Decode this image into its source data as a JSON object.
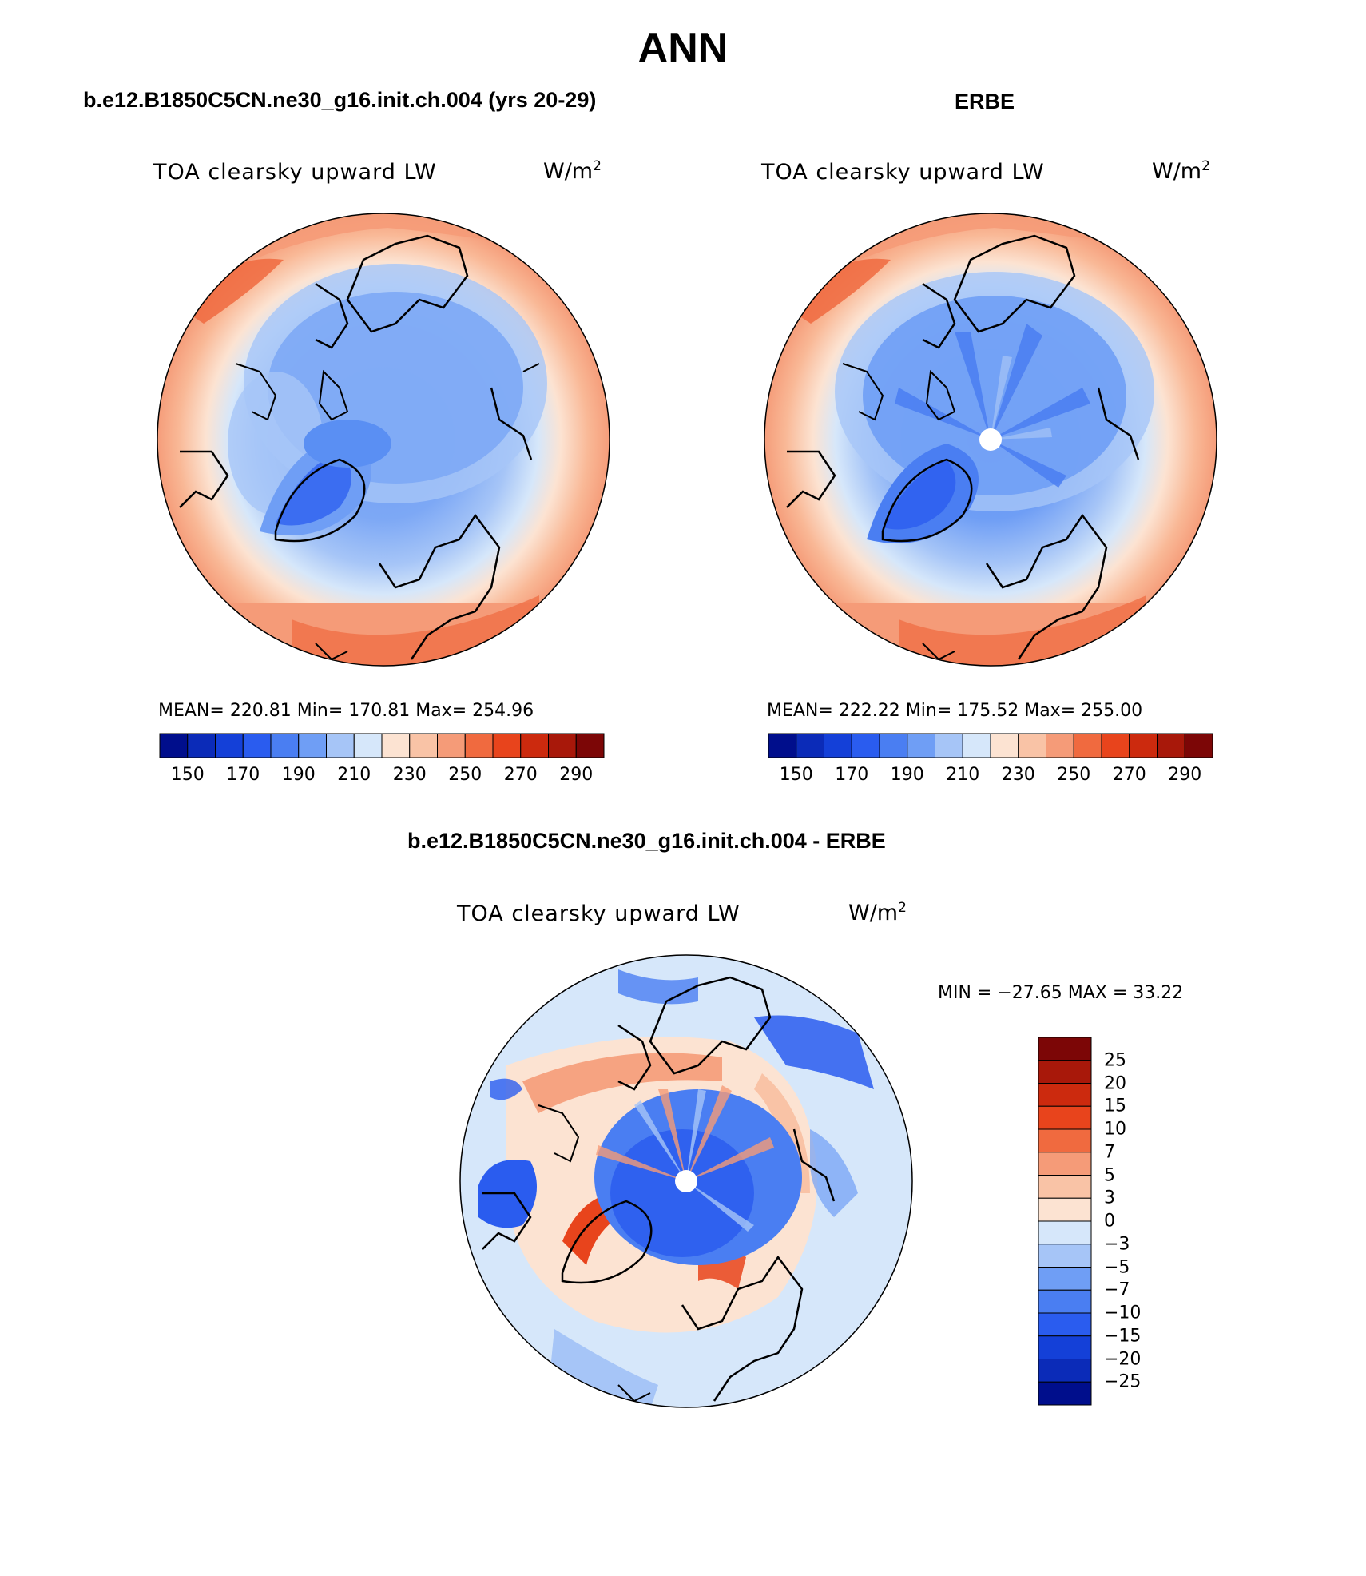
{
  "title": "ANN",
  "diff_title": "b.e12.B1850C5CN.ne30_g16.init.ch.004 - ERBE",
  "colors": {
    "absolute_scale": [
      "#000e8c",
      "#0b2bb8",
      "#1440d8",
      "#2a5cef",
      "#4a7ef2",
      "#6f9ef5",
      "#a6c5f7",
      "#d6e7fa",
      "#fce3d2",
      "#f9c3a6",
      "#f59b78",
      "#f06a3f",
      "#e8441c",
      "#cc2a0e",
      "#a8180a",
      "#7c0606"
    ],
    "difference_scale": [
      "#000e8c",
      "#0b2bb8",
      "#1440d8",
      "#2a5cef",
      "#4a7ef2",
      "#6f9ef5",
      "#a6c5f7",
      "#d6e7fa",
      "#fce3d2",
      "#f9c3a6",
      "#f59b78",
      "#f06a3f",
      "#e8441c",
      "#cc2a0e",
      "#a8180a",
      "#7c0606"
    ]
  },
  "panels": [
    {
      "case": "b.e12.B1850C5CN.ne30_g16.init.ch.004 (yrs 20-29)",
      "field": "TOA clearsky upward LW",
      "units_base": "W/m",
      "units_exp": "2",
      "stats": "MEAN= 220.81   Min= 170.81   Max= 254.96",
      "colorbar_ticks": [
        "150",
        "170",
        "190",
        "210",
        "230",
        "250",
        "270",
        "290"
      ]
    },
    {
      "case": "ERBE",
      "field": "TOA clearsky upward LW",
      "units_base": "W/m",
      "units_exp": "2",
      "stats": "MEAN= 222.22   Min= 175.52   Max= 255.00",
      "colorbar_ticks": [
        "150",
        "170",
        "190",
        "210",
        "230",
        "250",
        "270",
        "290"
      ]
    }
  ],
  "difference": {
    "field": "TOA clearsky upward LW",
    "units_base": "W/m",
    "units_exp": "2",
    "minmax": "MIN = −27.65 MAX =   33.22",
    "colorbar_ticks": [
      "25",
      "20",
      "15",
      "10",
      "7",
      "5",
      "3",
      "0",
      "−3",
      "−5",
      "−7",
      "−10",
      "−15",
      "−20",
      "−25"
    ]
  }
}
